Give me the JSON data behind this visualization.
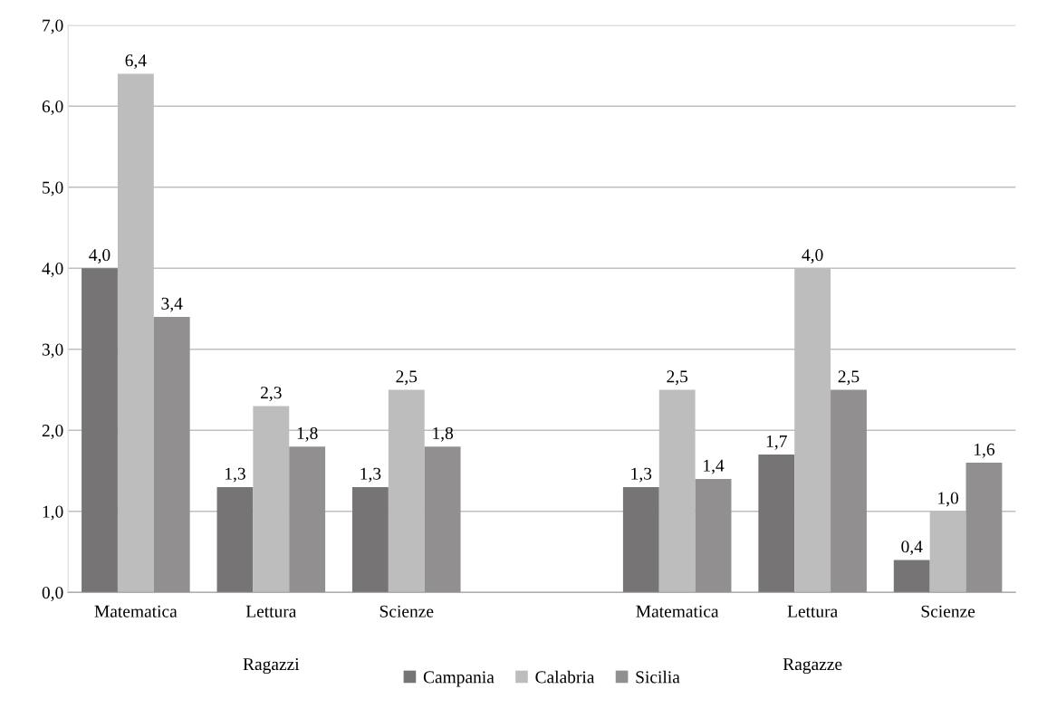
{
  "chart_data": {
    "type": "bar",
    "categories": [
      "Matematica",
      "Lettura",
      "Scienze",
      null,
      "Matematica",
      "Lettura",
      "Scienze"
    ],
    "series": [
      {
        "name": "Campania",
        "color": "#767474",
        "values": [
          4.0,
          1.3,
          1.3,
          null,
          1.3,
          1.7,
          0.4
        ],
        "value_labels": [
          "4,0",
          "1,3",
          "1,3",
          null,
          "1,3",
          "1,7",
          "0,4"
        ]
      },
      {
        "name": "Calabria",
        "color": "#bdbdbd",
        "values": [
          6.4,
          2.3,
          2.5,
          null,
          2.5,
          4.0,
          1.0
        ],
        "value_labels": [
          "6,4",
          "2,3",
          "2,5",
          null,
          "2,5",
          "4,0",
          "1,0"
        ]
      },
      {
        "name": "Sicilia",
        "color": "#918f8f",
        "values": [
          3.4,
          1.8,
          1.8,
          null,
          1.4,
          2.5,
          1.6
        ],
        "value_labels": [
          "3,4",
          "1,8",
          "1,8",
          null,
          "1,4",
          "2,5",
          "1,6"
        ]
      }
    ],
    "annotations": [
      "Ragazzi",
      "Ragazze"
    ],
    "ylim": [
      0,
      7
    ],
    "yticks": [
      {
        "value": 0,
        "label": "0,0"
      },
      {
        "value": 1,
        "label": "1,0"
      },
      {
        "value": 2,
        "label": "2,0"
      },
      {
        "value": 3,
        "label": "3,0"
      },
      {
        "value": 4,
        "label": "4,0"
      },
      {
        "value": 5,
        "label": "5,0"
      },
      {
        "value": 6,
        "label": "6,0"
      },
      {
        "value": 7,
        "label": "7,0"
      }
    ],
    "grid": "y",
    "legend": "bottom"
  }
}
